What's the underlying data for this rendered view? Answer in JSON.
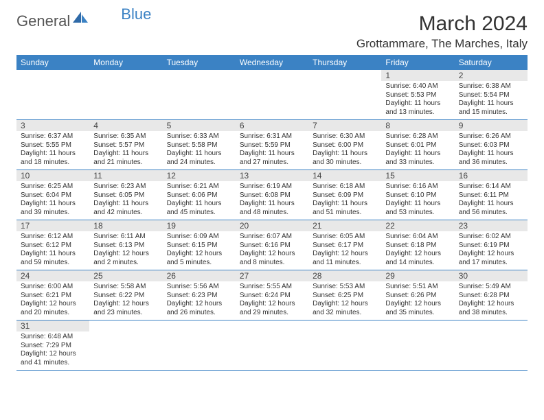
{
  "logo": {
    "text1": "General",
    "text2": "Blue",
    "accent": "#3b82c4"
  },
  "title": "March 2024",
  "location": "Grottammare, The Marches, Italy",
  "header_bg": "#3b82c4",
  "header_fg": "#ffffff",
  "daynum_bg": "#e8e8e8",
  "border_color": "#3b82c4",
  "font_family": "Arial",
  "weekdays": [
    "Sunday",
    "Monday",
    "Tuesday",
    "Wednesday",
    "Thursday",
    "Friday",
    "Saturday"
  ],
  "days": [
    {
      "n": 1,
      "sr": "6:40 AM",
      "ss": "5:53 PM",
      "dl": "11 hours and 13 minutes."
    },
    {
      "n": 2,
      "sr": "6:38 AM",
      "ss": "5:54 PM",
      "dl": "11 hours and 15 minutes."
    },
    {
      "n": 3,
      "sr": "6:37 AM",
      "ss": "5:55 PM",
      "dl": "11 hours and 18 minutes."
    },
    {
      "n": 4,
      "sr": "6:35 AM",
      "ss": "5:57 PM",
      "dl": "11 hours and 21 minutes."
    },
    {
      "n": 5,
      "sr": "6:33 AM",
      "ss": "5:58 PM",
      "dl": "11 hours and 24 minutes."
    },
    {
      "n": 6,
      "sr": "6:31 AM",
      "ss": "5:59 PM",
      "dl": "11 hours and 27 minutes."
    },
    {
      "n": 7,
      "sr": "6:30 AM",
      "ss": "6:00 PM",
      "dl": "11 hours and 30 minutes."
    },
    {
      "n": 8,
      "sr": "6:28 AM",
      "ss": "6:01 PM",
      "dl": "11 hours and 33 minutes."
    },
    {
      "n": 9,
      "sr": "6:26 AM",
      "ss": "6:03 PM",
      "dl": "11 hours and 36 minutes."
    },
    {
      "n": 10,
      "sr": "6:25 AM",
      "ss": "6:04 PM",
      "dl": "11 hours and 39 minutes."
    },
    {
      "n": 11,
      "sr": "6:23 AM",
      "ss": "6:05 PM",
      "dl": "11 hours and 42 minutes."
    },
    {
      "n": 12,
      "sr": "6:21 AM",
      "ss": "6:06 PM",
      "dl": "11 hours and 45 minutes."
    },
    {
      "n": 13,
      "sr": "6:19 AM",
      "ss": "6:08 PM",
      "dl": "11 hours and 48 minutes."
    },
    {
      "n": 14,
      "sr": "6:18 AM",
      "ss": "6:09 PM",
      "dl": "11 hours and 51 minutes."
    },
    {
      "n": 15,
      "sr": "6:16 AM",
      "ss": "6:10 PM",
      "dl": "11 hours and 53 minutes."
    },
    {
      "n": 16,
      "sr": "6:14 AM",
      "ss": "6:11 PM",
      "dl": "11 hours and 56 minutes."
    },
    {
      "n": 17,
      "sr": "6:12 AM",
      "ss": "6:12 PM",
      "dl": "11 hours and 59 minutes."
    },
    {
      "n": 18,
      "sr": "6:11 AM",
      "ss": "6:13 PM",
      "dl": "12 hours and 2 minutes."
    },
    {
      "n": 19,
      "sr": "6:09 AM",
      "ss": "6:15 PM",
      "dl": "12 hours and 5 minutes."
    },
    {
      "n": 20,
      "sr": "6:07 AM",
      "ss": "6:16 PM",
      "dl": "12 hours and 8 minutes."
    },
    {
      "n": 21,
      "sr": "6:05 AM",
      "ss": "6:17 PM",
      "dl": "12 hours and 11 minutes."
    },
    {
      "n": 22,
      "sr": "6:04 AM",
      "ss": "6:18 PM",
      "dl": "12 hours and 14 minutes."
    },
    {
      "n": 23,
      "sr": "6:02 AM",
      "ss": "6:19 PM",
      "dl": "12 hours and 17 minutes."
    },
    {
      "n": 24,
      "sr": "6:00 AM",
      "ss": "6:21 PM",
      "dl": "12 hours and 20 minutes."
    },
    {
      "n": 25,
      "sr": "5:58 AM",
      "ss": "6:22 PM",
      "dl": "12 hours and 23 minutes."
    },
    {
      "n": 26,
      "sr": "5:56 AM",
      "ss": "6:23 PM",
      "dl": "12 hours and 26 minutes."
    },
    {
      "n": 27,
      "sr": "5:55 AM",
      "ss": "6:24 PM",
      "dl": "12 hours and 29 minutes."
    },
    {
      "n": 28,
      "sr": "5:53 AM",
      "ss": "6:25 PM",
      "dl": "12 hours and 32 minutes."
    },
    {
      "n": 29,
      "sr": "5:51 AM",
      "ss": "6:26 PM",
      "dl": "12 hours and 35 minutes."
    },
    {
      "n": 30,
      "sr": "5:49 AM",
      "ss": "6:28 PM",
      "dl": "12 hours and 38 minutes."
    },
    {
      "n": 31,
      "sr": "6:48 AM",
      "ss": "7:29 PM",
      "dl": "12 hours and 41 minutes."
    }
  ],
  "first_weekday_index": 5,
  "labels": {
    "sunrise": "Sunrise:",
    "sunset": "Sunset:",
    "daylight": "Daylight:"
  }
}
